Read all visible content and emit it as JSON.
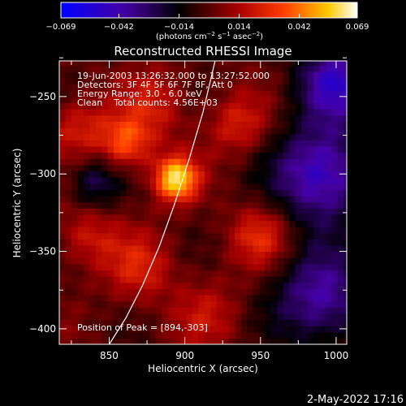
{
  "chart_data": {
    "type": "heatmap",
    "title": "Reconstructed RHESSI Image",
    "xlabel": "Heliocentric X (arcsec)",
    "ylabel": "Heliocentric Y (arcsec)",
    "xlim": [
      817,
      1007
    ],
    "ylim": [
      -410,
      -227
    ],
    "xticks": [
      850,
      900,
      950,
      1000
    ],
    "yticks": [
      -250,
      -300,
      -350,
      -400
    ],
    "xtick_labels": [
      "850",
      "900",
      "950",
      "1000"
    ],
    "ytick_labels": [
      "−250",
      "−300",
      "−350",
      "−400"
    ],
    "colorbar": {
      "min": -0.069,
      "max": 0.069,
      "ticks": [
        -0.069,
        -0.042,
        -0.014,
        0.014,
        0.042,
        0.069
      ],
      "tick_labels": [
        "−0.069",
        "−0.042",
        "−0.014",
        "0.014",
        "0.042",
        "0.069"
      ],
      "unit_text": "(photons cm",
      "unit_sup1": "−2",
      "unit_mid": " s",
      "unit_sup2": "−1",
      "unit_mid2": " asec",
      "unit_sup3": "−2",
      "unit_end": ")"
    },
    "annotations": [
      "19-Jun-2003 13:26:32.000 to 13:27:52.000",
      "Detectors: 3F 4F 5F 6F 7F 8F, Att 0",
      "Energy Range: 3.0 - 6.0 keV",
      "Clean    Total counts: 4.56E+03"
    ],
    "peak": {
      "label": "Position of Peak = [894,-303]",
      "x": 894,
      "y": -303,
      "value": 0.069
    },
    "sources": [
      {
        "x": 894,
        "y": -303,
        "amp": 0.06,
        "sigma": 10
      },
      {
        "x": 861,
        "y": -280,
        "amp": 0.035,
        "sigma": 12
      },
      {
        "x": 830,
        "y": -270,
        "amp": 0.022,
        "sigma": 14
      },
      {
        "x": 880,
        "y": -255,
        "amp": 0.02,
        "sigma": 16
      },
      {
        "x": 935,
        "y": -268,
        "amp": 0.022,
        "sigma": 14
      },
      {
        "x": 950,
        "y": -340,
        "amp": 0.026,
        "sigma": 14
      },
      {
        "x": 870,
        "y": -360,
        "amp": 0.022,
        "sigma": 16
      },
      {
        "x": 835,
        "y": -340,
        "amp": 0.02,
        "sigma": 14
      },
      {
        "x": 915,
        "y": -390,
        "amp": 0.016,
        "sigma": 16
      },
      {
        "x": 990,
        "y": -300,
        "amp": -0.05,
        "sigma": 22
      },
      {
        "x": 990,
        "y": -380,
        "amp": -0.04,
        "sigma": 22
      },
      {
        "x": 1000,
        "y": -240,
        "amp": -0.045,
        "sigma": 18
      },
      {
        "x": 840,
        "y": -305,
        "amp": -0.025,
        "sigma": 12
      }
    ],
    "limb": {
      "x": [
        920,
        912,
        903,
        893,
        883,
        872,
        861,
        850
      ],
      "y": [
        -227,
        -260,
        -290,
        -320,
        -347,
        -372,
        -393,
        -410
      ]
    }
  },
  "footer": {
    "timestamp": "2-May-2022 17:16"
  }
}
